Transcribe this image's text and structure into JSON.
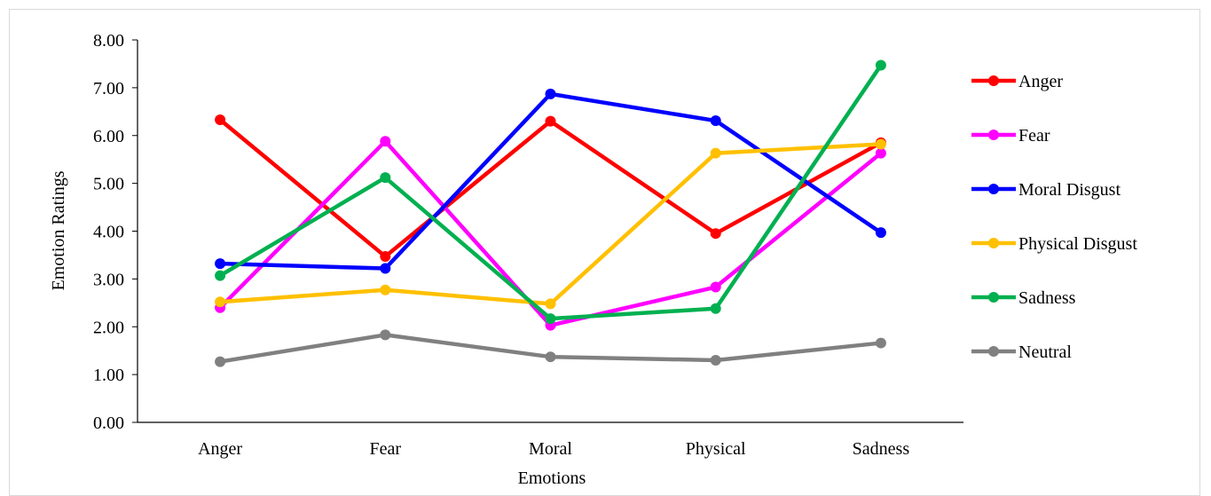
{
  "chart_data": {
    "type": "line",
    "categories": [
      "Anger",
      "Fear",
      "Moral",
      "Physical",
      "Sadness"
    ],
    "xlabel_lines": [
      "Emotions"
    ],
    "ylabel": "Emotion Ratings",
    "ylim": [
      0,
      8
    ],
    "yticks": [
      "0.00",
      "1.00",
      "2.00",
      "3.00",
      "4.00",
      "5.00",
      "6.00",
      "7.00",
      "8.00"
    ],
    "grid": false,
    "legend_position": "right",
    "series": [
      {
        "name": "Anger",
        "color": "#ff0000",
        "values": [
          6.33,
          3.47,
          6.3,
          3.95,
          5.85
        ]
      },
      {
        "name": "Fear",
        "color": "#ff00ff",
        "values": [
          2.4,
          5.88,
          2.03,
          2.83,
          5.63
        ]
      },
      {
        "name": "Moral Disgust",
        "color": "#0000ff",
        "values": [
          3.32,
          3.22,
          6.87,
          6.31,
          3.97
        ]
      },
      {
        "name": "Physical Disgust",
        "color": "#ffc000",
        "values": [
          2.52,
          2.77,
          2.48,
          5.63,
          5.82
        ]
      },
      {
        "name": "Sadness",
        "color": "#00b050",
        "values": [
          3.07,
          5.12,
          2.17,
          2.38,
          7.47
        ]
      },
      {
        "name": "Neutral",
        "color": "#808080",
        "values": [
          1.27,
          1.83,
          1.37,
          1.3,
          1.66
        ]
      }
    ]
  }
}
